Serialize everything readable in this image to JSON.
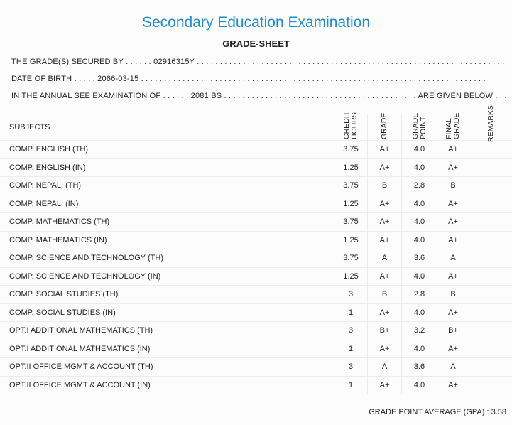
{
  "header": {
    "title": "Secondary Education Examination",
    "subtitle": "GRADE-SHEET"
  },
  "info": [
    "THE GRADE(S) SECURED BY . . . . . . 02916315Y . . . . . . . . . . . . . . . . . . . . . . . . . . . . . . . . . . . . . . . . . . . . . . . . . . . . . . . . . . . . . . . . . . .",
    "DATE OF BIRTH . . . . . 2066-03-15 . . . . . . . . . . . . . . . . . . . . . . . . . . . . . . . . . . . . . . . . . . . . . . . . . . . . . . . . . . . . . . . . . . . . . . . . . . .",
    "IN THE ANNUAL SEE EXAMINATION OF . . . . . . 2081 BS . . . . . . . . . . . . . . . . . . . . . . . . . . . . . . . . . . . . . . . . . . ARE GIVEN BELOW . . ."
  ],
  "table": {
    "columns": [
      "SUBJECTS",
      "CREDIT HOURS",
      "GRADE",
      "GRADE POINT",
      "FINAL GRADE",
      "REMARKS"
    ],
    "rows": [
      [
        "COMP. ENGLISH (TH)",
        "3.75",
        "A+",
        "4.0",
        "A+"
      ],
      [
        "COMP. ENGLISH (IN)",
        "1.25",
        "A+",
        "4.0",
        "A+"
      ],
      [
        "COMP. NEPALI (TH)",
        "3.75",
        "B",
        "2.8",
        "B"
      ],
      [
        "COMP. NEPALI (IN)",
        "1.25",
        "A+",
        "4.0",
        "A+"
      ],
      [
        "COMP. MATHEMATICS (TH)",
        "3.75",
        "A+",
        "4.0",
        "A+"
      ],
      [
        "COMP. MATHEMATICS (IN)",
        "1.25",
        "A+",
        "4.0",
        "A+"
      ],
      [
        "COMP. SCIENCE AND TECHNOLOGY (TH)",
        "3.75",
        "A",
        "3.6",
        "A"
      ],
      [
        "COMP. SCIENCE AND TECHNOLOGY (IN)",
        "1.25",
        "A+",
        "4.0",
        "A+"
      ],
      [
        "COMP. SOCIAL STUDIES (TH)",
        "3",
        "B",
        "2.8",
        "B"
      ],
      [
        "COMP. SOCIAL STUDIES (IN)",
        "1",
        "A+",
        "4.0",
        "A+"
      ],
      [
        "OPT.I ADDITIONAL MATHEMATICS (TH)",
        "3",
        "B+",
        "3.2",
        "B+"
      ],
      [
        "OPT.I ADDITIONAL MATHEMATICS (IN)",
        "1",
        "A+",
        "4.0",
        "A+"
      ],
      [
        "OPT.II OFFICE MGMT & ACCOUNT (TH)",
        "3",
        "A",
        "3.6",
        "A"
      ],
      [
        "OPT.II OFFICE MGMT & ACCOUNT (IN)",
        "1",
        "A+",
        "4.0",
        "A+"
      ]
    ]
  },
  "footer": {
    "gpa": "GRADE POINT AVERAGE (GPA) : 3.58"
  }
}
